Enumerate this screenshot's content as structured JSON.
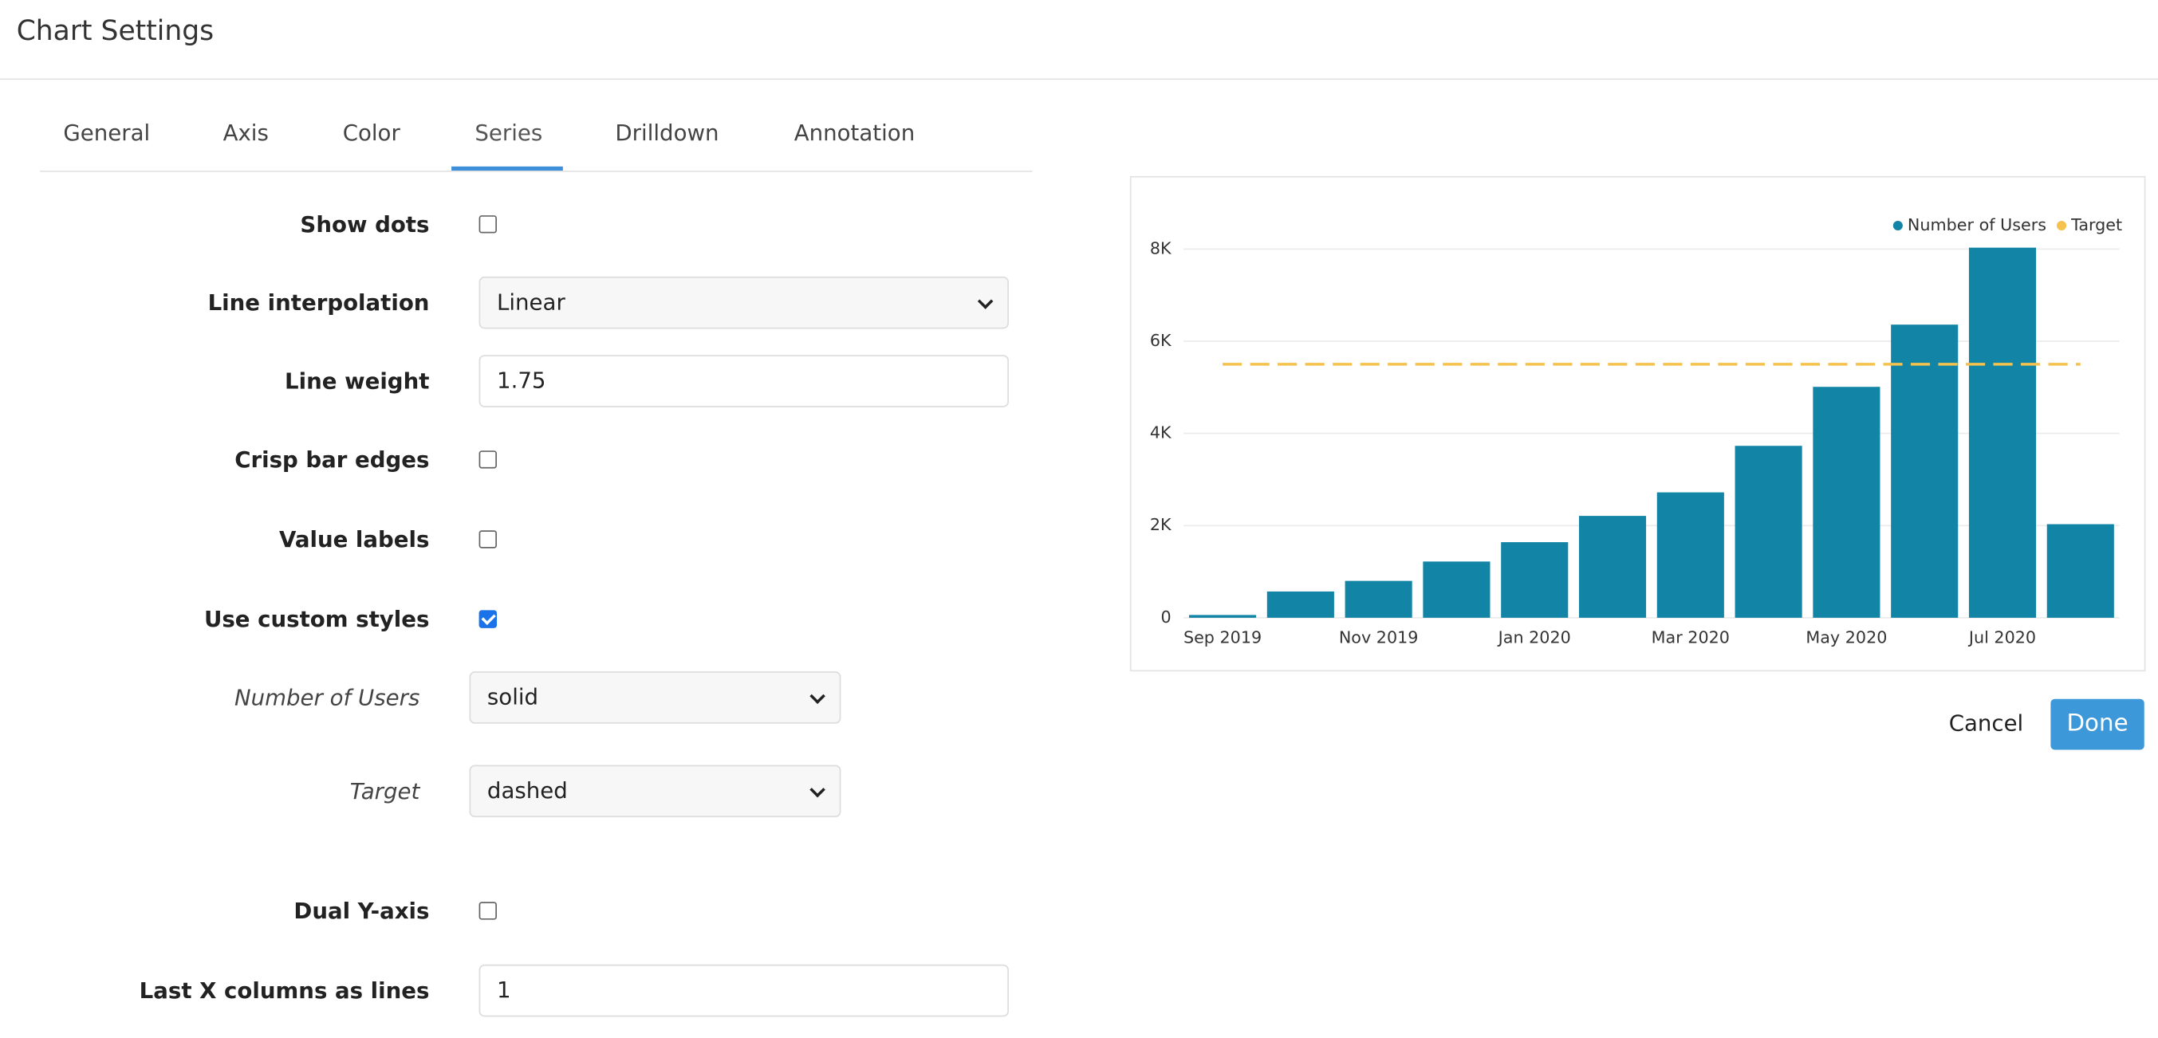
{
  "header": {
    "title": "Chart Settings"
  },
  "tabs": [
    "General",
    "Axis",
    "Color",
    "Series",
    "Drilldown",
    "Annotation"
  ],
  "active_tab": 3,
  "fields": [
    {
      "label": "Show dots",
      "checked": false
    },
    {
      "label": "Line interpolation",
      "value": "Linear"
    },
    {
      "label": "Line weight",
      "value": "1.75"
    },
    {
      "label": "Crisp bar edges",
      "checked": false
    },
    {
      "label": "Value labels",
      "checked": false
    },
    {
      "label": "Use custom styles",
      "checked": true
    },
    {
      "label": "Number of Users",
      "value": "solid"
    },
    {
      "label": "Target",
      "value": "dashed"
    },
    {
      "label": "Dual Y-axis",
      "checked": false
    },
    {
      "label": "Last X columns as lines",
      "value": "1"
    }
  ],
  "buttons": {
    "cancel": "Cancel",
    "done": "Done"
  },
  "chart_data": {
    "type": "bar",
    "categories": [
      "Sep 2019",
      null,
      "Nov 2019",
      null,
      "Jan 2020",
      null,
      "Mar 2020",
      null,
      "May 2020",
      null,
      "Jul 2020",
      null
    ],
    "series": [
      {
        "name": "Number of Users",
        "color": "#1285a6",
        "type": "bar",
        "values": [
          60,
          570,
          800,
          1220,
          1640,
          2210,
          2720,
          3730,
          5010,
          6360,
          8030,
          2030
        ]
      },
      {
        "name": "Target",
        "color": "#f5c24d",
        "type": "line",
        "dashed": true,
        "values": [
          5500,
          5500,
          5500,
          5500,
          5500,
          5500,
          5500,
          5500,
          5500,
          5500,
          5500,
          5500
        ]
      }
    ],
    "ylim": [
      0,
      8000
    ],
    "yticks": [
      0,
      {
        "value": 2000,
        "label": "2K"
      },
      {
        "value": 4000,
        "label": "4K"
      },
      {
        "value": 6000,
        "label": "6K"
      },
      {
        "value": 8000,
        "label": "8K"
      }
    ],
    "grid": true,
    "legend": "top-right"
  }
}
